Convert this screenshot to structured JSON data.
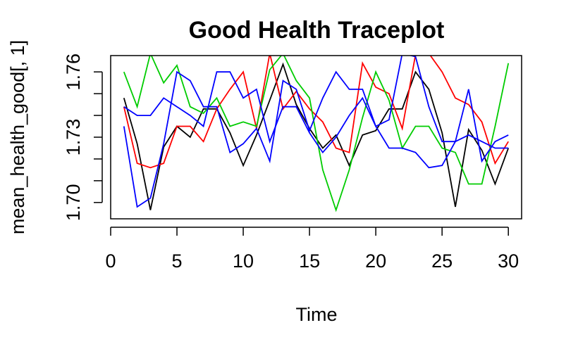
{
  "chart_data": {
    "type": "line",
    "title": "Good Health Traceplot",
    "xlabel": "Time",
    "ylabel": "mean_health_good[, 1]",
    "xlim": [
      0.0,
      31.0
    ],
    "ylim": [
      1.6925,
      1.7675
    ],
    "xticks": [
      0,
      5,
      10,
      15,
      20,
      25,
      30
    ],
    "yticks": [
      "1.70",
      "1.73",
      "1.76"
    ],
    "grid": false,
    "legend": "none",
    "series": [
      {
        "color": "#000000",
        "x": [
          1,
          2,
          3,
          4,
          5,
          6,
          7,
          8,
          9,
          10,
          11,
          12,
          13,
          14,
          15,
          16,
          17,
          18,
          19,
          20,
          21,
          22,
          23,
          24,
          25,
          26,
          27,
          28,
          29,
          30
        ],
        "values": [
          1.748,
          1.727,
          1.6965,
          1.7255,
          1.735,
          1.73,
          1.743,
          1.743,
          1.732,
          1.717,
          1.731,
          1.747,
          1.7635,
          1.745,
          1.734,
          1.725,
          1.731,
          1.717,
          1.731,
          1.733,
          1.743,
          1.743,
          1.76,
          1.752,
          1.732,
          1.698,
          1.7335,
          1.724,
          1.7085,
          1.725
        ]
      },
      {
        "color": "#ff0000",
        "x": [
          1,
          2,
          3,
          4,
          5,
          6,
          7,
          8,
          9,
          10,
          11,
          12,
          13,
          14,
          15,
          16,
          17,
          18,
          19,
          20,
          21,
          22,
          23,
          24,
          25,
          26,
          27,
          28,
          29,
          30
        ],
        "values": [
          1.744,
          1.718,
          1.716,
          1.718,
          1.735,
          1.735,
          1.728,
          1.743,
          1.752,
          1.76,
          1.734,
          1.7685,
          1.743,
          1.751,
          1.743,
          1.737,
          1.725,
          1.723,
          1.764,
          1.753,
          1.75,
          1.734,
          1.768,
          1.7685,
          1.76,
          1.748,
          1.745,
          1.737,
          1.718,
          1.728
        ]
      },
      {
        "color": "#00cc00",
        "x": [
          1,
          2,
          3,
          4,
          5,
          6,
          7,
          8,
          9,
          10,
          11,
          12,
          13,
          14,
          15,
          16,
          17,
          18,
          19,
          20,
          21,
          22,
          23,
          24,
          25,
          26,
          27,
          28,
          29,
          30
        ],
        "values": [
          1.76,
          1.744,
          1.7685,
          1.755,
          1.763,
          1.744,
          1.741,
          1.748,
          1.735,
          1.737,
          1.735,
          1.761,
          1.7685,
          1.756,
          1.748,
          1.715,
          1.6965,
          1.715,
          1.739,
          1.76,
          1.747,
          1.725,
          1.735,
          1.735,
          1.725,
          1.723,
          1.7085,
          1.7085,
          1.735,
          1.764
        ]
      },
      {
        "color": "#0000ff",
        "x": [
          1,
          2,
          3,
          4,
          5,
          6,
          7,
          8,
          9,
          10,
          11,
          12,
          13,
          14,
          15,
          16,
          17,
          18,
          19,
          20,
          21,
          22,
          23,
          24,
          25,
          26,
          27,
          28,
          29,
          30
        ],
        "values": [
          1.744,
          1.74,
          1.74,
          1.748,
          1.744,
          1.74,
          1.735,
          1.76,
          1.76,
          1.748,
          1.752,
          1.728,
          1.744,
          1.744,
          1.732,
          1.723,
          1.73,
          1.74,
          1.748,
          1.735,
          1.738,
          1.7685,
          1.767,
          1.744,
          1.728,
          1.728,
          1.731,
          1.728,
          1.725,
          1.725
        ]
      },
      {
        "color": "#0000ff",
        "x": [
          1,
          2,
          3,
          4,
          5,
          6,
          7,
          8,
          9,
          10,
          11,
          12,
          13,
          14,
          15,
          16,
          17,
          18,
          19,
          20,
          21,
          22,
          23,
          24,
          25,
          26,
          27,
          28,
          29,
          30
        ],
        "values": [
          1.735,
          1.698,
          1.702,
          1.727,
          1.76,
          1.756,
          1.744,
          1.744,
          1.723,
          1.727,
          1.734,
          1.719,
          1.756,
          1.752,
          1.733,
          1.748,
          1.76,
          1.752,
          1.752,
          1.735,
          1.725,
          1.725,
          1.723,
          1.716,
          1.717,
          1.728,
          1.752,
          1.719,
          1.728,
          1.731
        ]
      }
    ]
  }
}
